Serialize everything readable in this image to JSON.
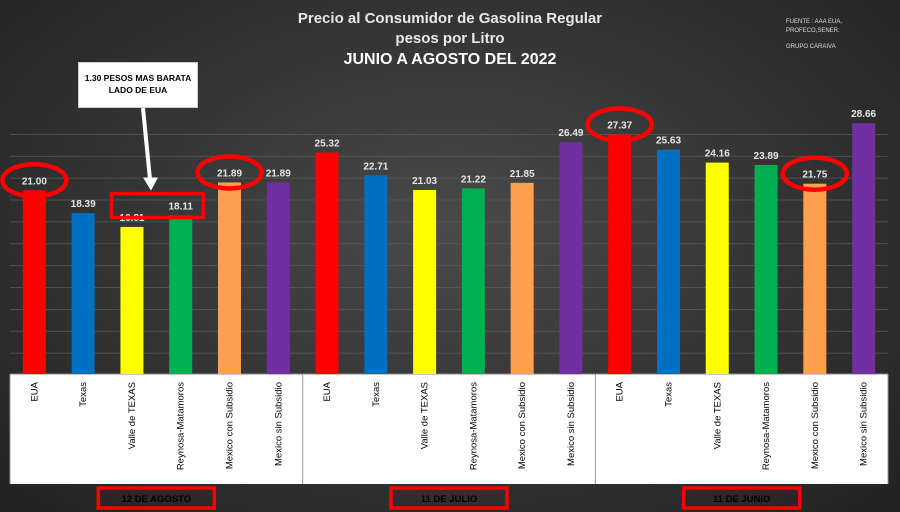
{
  "title": "Precio al Consumidor de Gasolina Regular",
  "subtitle": "pesos por Litro",
  "period": "JUNIO A AGOSTO DEL 2022",
  "source_lines": [
    "FUENTE : AAA EUA,",
    "PROFECO,SENER."
  ],
  "group": "GRUPO CARAIVA",
  "callout": {
    "line1": "1.30 PESOS MAS BARATA",
    "line2": "LADO DE EUA"
  },
  "chart_data": {
    "type": "bar",
    "groups": [
      {
        "label": "12 DE  AGOSTO",
        "categories": [
          "EUA",
          "Texas",
          "Valle de TEXAS",
          "Reynosa-Matamoros",
          "Mexico con Subsidio",
          "Mexico sin Subsidio"
        ],
        "values": [
          21.0,
          18.39,
          16.81,
          18.11,
          21.89,
          21.89
        ]
      },
      {
        "label": "11 DE JULIO",
        "categories": [
          "EUA",
          "Texas",
          "Valle de TEXAS",
          "Reynosa-Matamoros",
          "Mexico con Subsidio",
          "Mexico sin Subsidio"
        ],
        "values": [
          25.32,
          22.71,
          21.03,
          21.22,
          21.85,
          26.49
        ]
      },
      {
        "label": "11 DE JUNIO",
        "categories": [
          "EUA",
          "Texas",
          "Valle de TEXAS",
          "Reynosa-Matamoros",
          "Mexico con Subsidio",
          "Mexico sin Subsidio"
        ],
        "values": [
          27.37,
          25.63,
          24.16,
          23.89,
          21.75,
          28.66
        ]
      }
    ],
    "value_labels": [
      "21.00",
      "18.39",
      "16.81",
      "18.11",
      "21.89",
      "21.89",
      "25.32",
      "22.71",
      "21.03",
      "21.22",
      "21.85",
      "26.49",
      "27.37",
      "25.63",
      "24.16",
      "23.89",
      "21.75",
      "28.66"
    ],
    "colors": [
      "#ff0000",
      "#0070c0",
      "#ffff00",
      "#00b050",
      "#ffa050",
      "#7030a0"
    ],
    "highlight_color": "#ff0000",
    "circled_values": [
      "21.00",
      "21.89",
      "27.37",
      "21.75"
    ],
    "boxed_values": [
      "16.81",
      "18.11"
    ],
    "ylim": [
      0,
      30
    ],
    "grid": true,
    "legend": "none"
  }
}
